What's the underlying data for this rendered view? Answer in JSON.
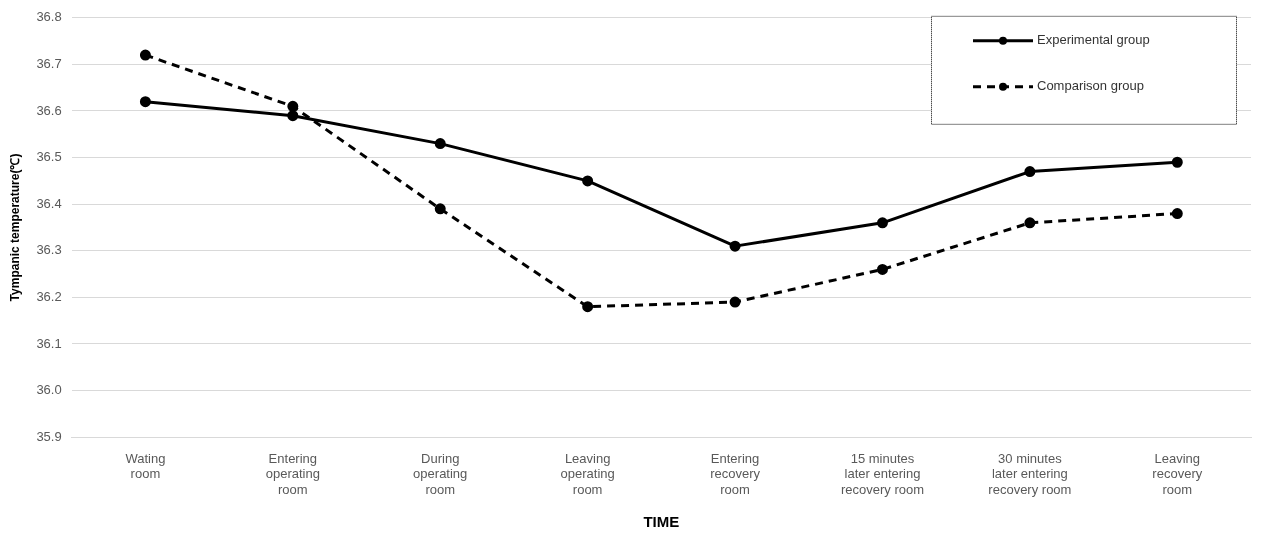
{
  "chart_data": {
    "type": "line",
    "xlabel": "TIME",
    "ylabel": "Tympanic temperature(℃)",
    "categories": [
      "Wating\nroom",
      "Entering\noperating\nroom",
      "During\noperating\nroom",
      "Leaving\noperating\nroom",
      "Entering\nrecovery\nroom",
      "15 minutes\nlater entering\nrecovery room",
      "30 minutes\nlater entering\nrecovery room",
      "Leaving\nrecovery\nroom"
    ],
    "series": [
      {
        "name": "Experimental group",
        "color": "#000000",
        "line_style": "solid",
        "values": [
          36.62,
          36.59,
          36.53,
          36.45,
          36.31,
          36.36,
          36.47,
          36.49
        ]
      },
      {
        "name": "Comparison group",
        "color": "#000000",
        "line_style": "dashed",
        "values": [
          36.72,
          36.61,
          36.39,
          36.18,
          36.19,
          36.26,
          36.36,
          36.38
        ]
      }
    ],
    "ylim": [
      35.9,
      36.8
    ],
    "yticks": [
      35.9,
      {
        "value": 36,
        "label": "36.0"
      },
      36.1,
      36.2,
      36.3,
      36.4,
      36.5,
      36.6,
      36.7,
      36.8
    ],
    "grid": "y",
    "legend": "top right",
    "marker": "circle"
  }
}
